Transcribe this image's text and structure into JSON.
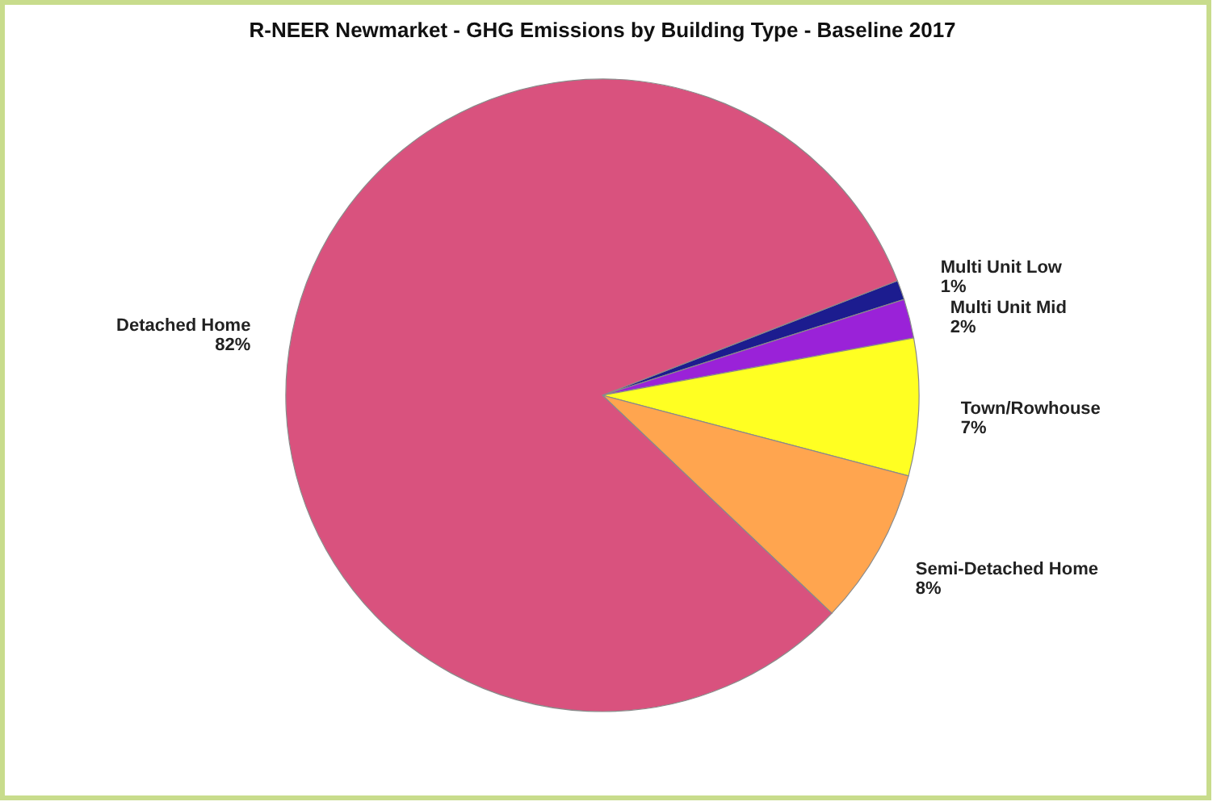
{
  "chart_data": {
    "type": "pie",
    "title": "R-NEER Newmarket - GHG Emissions by Building Type - Baseline 2017",
    "categories": [
      "Multi Unit Low",
      "Multi Unit Mid",
      "Town/Rowhouse",
      "Semi-Detached Home",
      "Detached Home"
    ],
    "values": [
      1,
      2,
      7,
      8,
      82
    ],
    "value_labels": [
      "1%",
      "2%",
      "7%",
      "8%",
      "82%"
    ],
    "colors": [
      "#1c1c8f",
      "#9a22d8",
      "#ffff22",
      "#ffa54f",
      "#d9527e"
    ],
    "legend": false
  }
}
